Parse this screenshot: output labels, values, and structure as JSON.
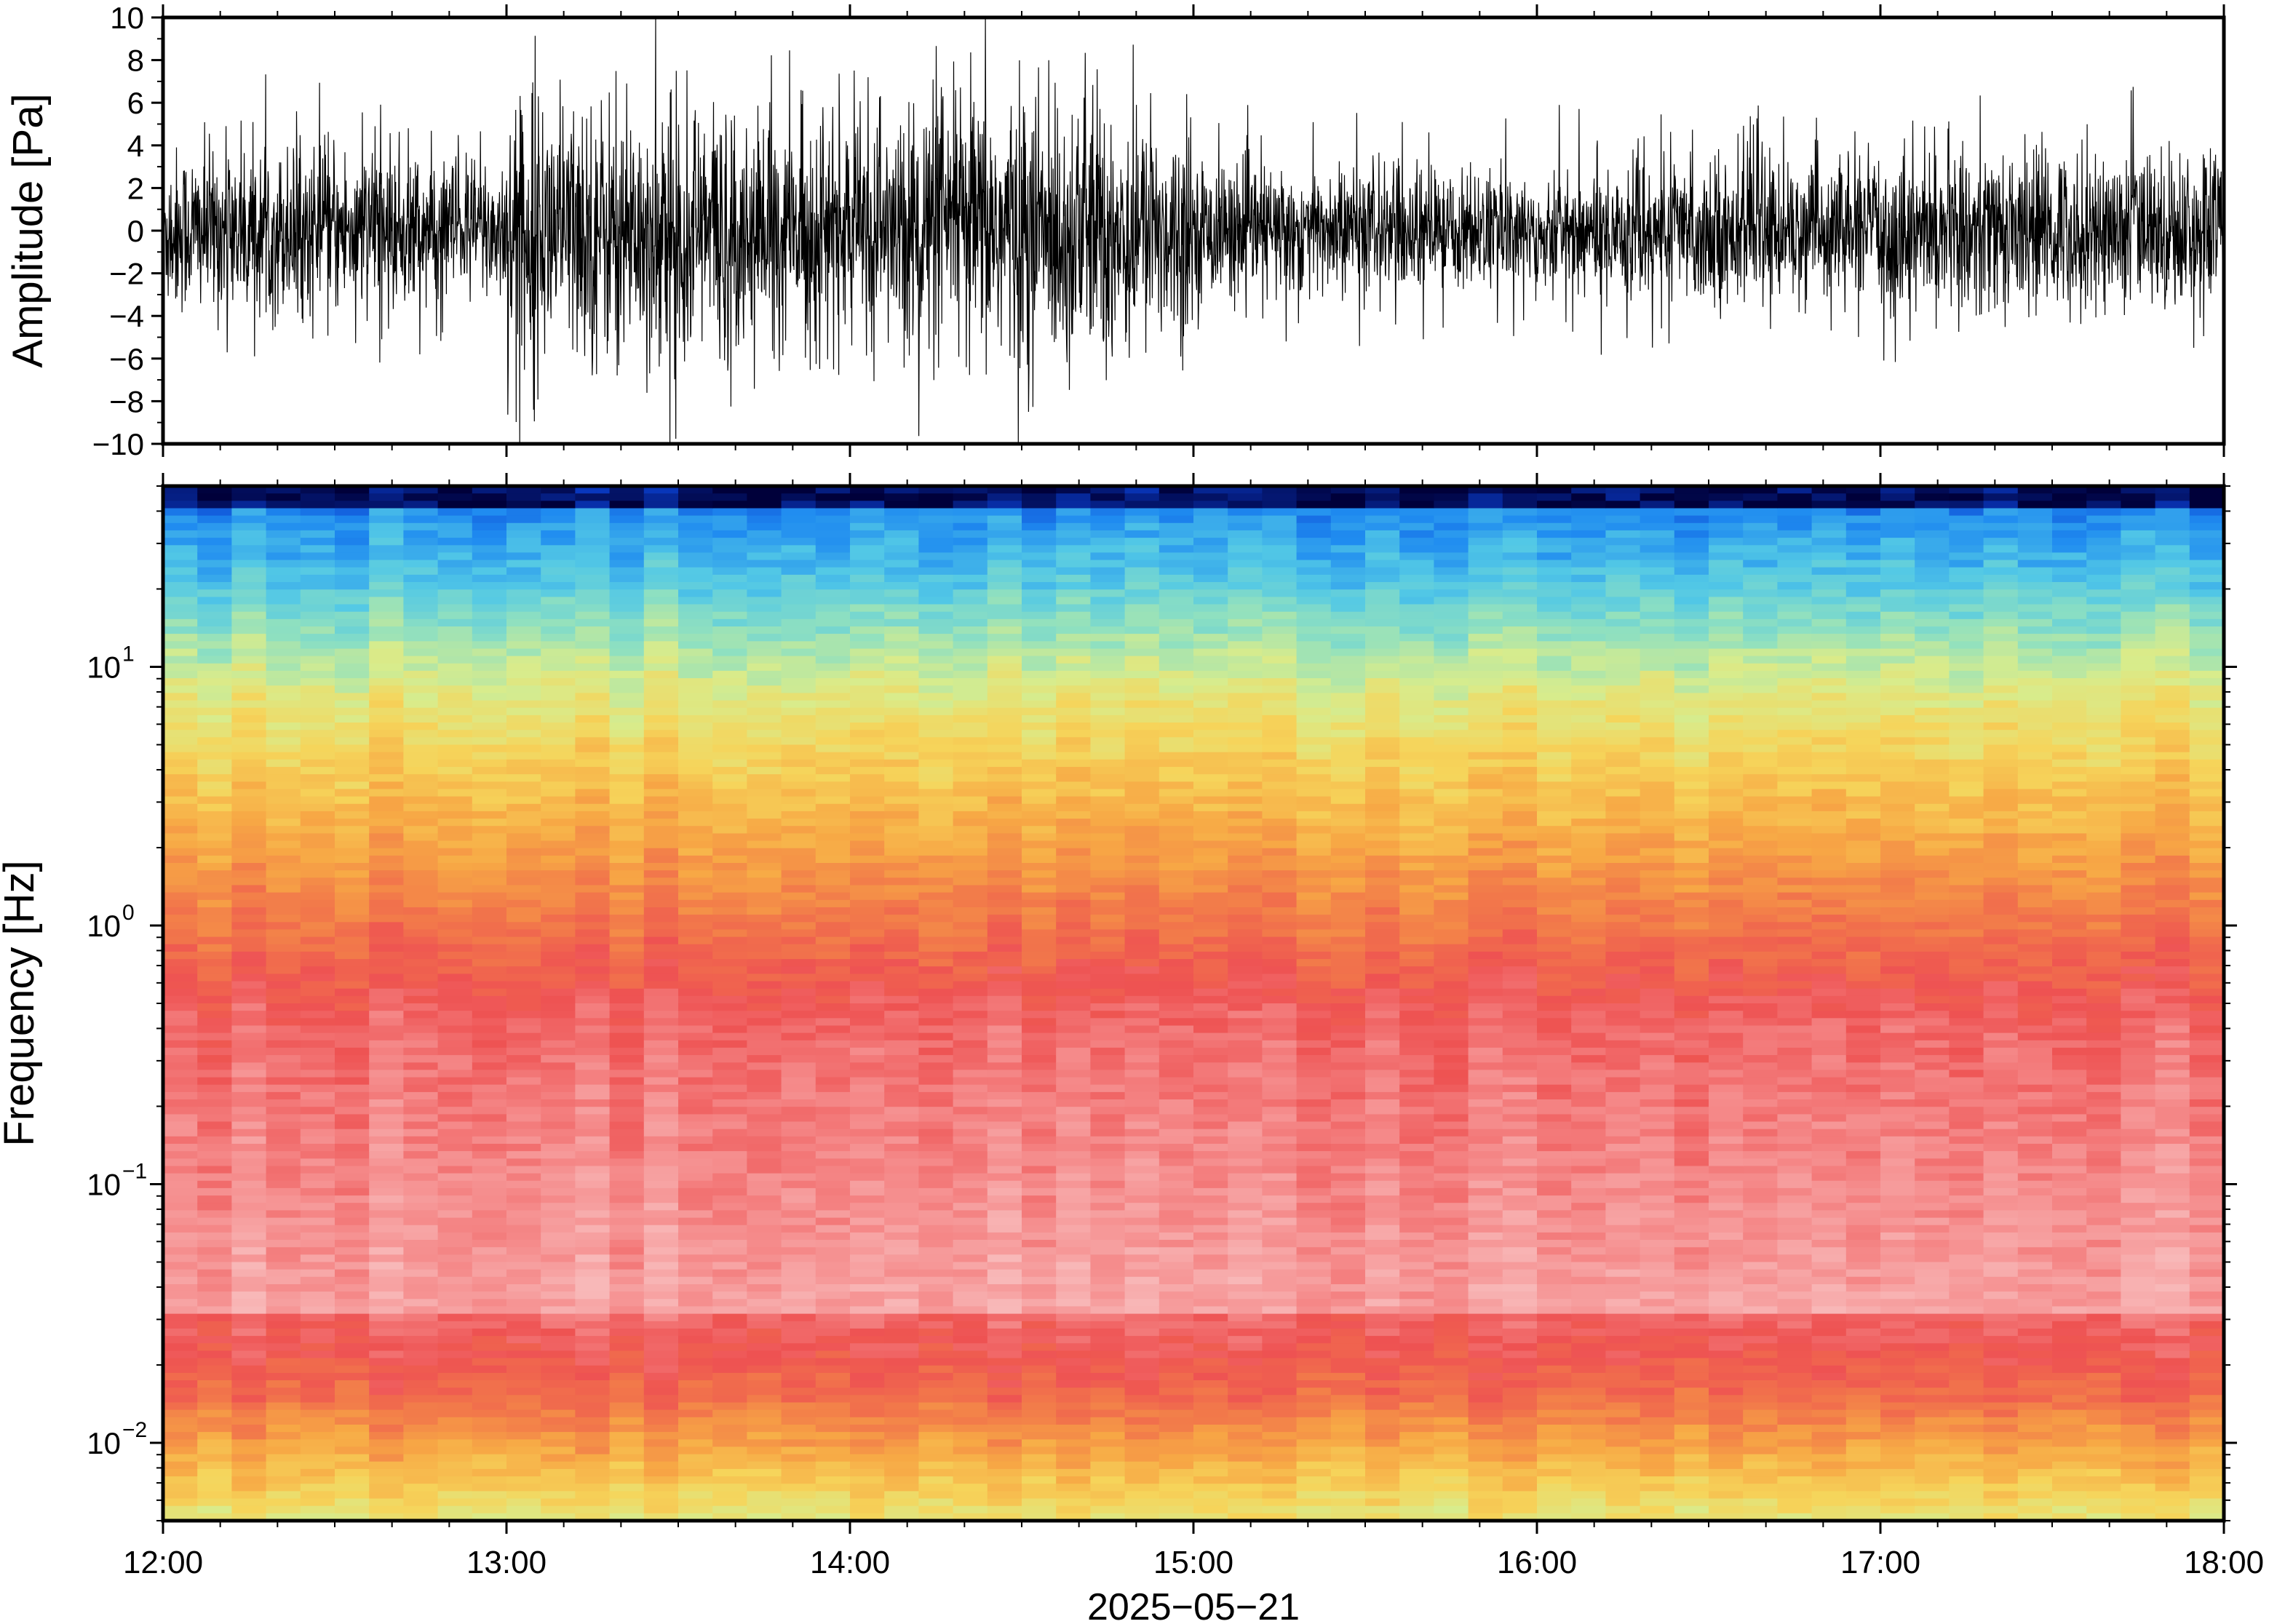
{
  "chart_data": [
    {
      "type": "line",
      "description_role": "waveform",
      "ylabel": "Amplitude [Pa]",
      "ylim": [
        -10,
        10
      ],
      "y_ticks": [
        "10",
        "8",
        "6",
        "4",
        "2",
        "0",
        "−2",
        "−4",
        "−6",
        "−8",
        "−10"
      ],
      "y_tick_values": [
        10,
        8,
        6,
        4,
        2,
        0,
        -2,
        -4,
        -6,
        -8,
        -10
      ],
      "xlim": [
        "12:00",
        "18:00"
      ],
      "envelope_segments": [
        {
          "from": "12:00",
          "to": "12:45",
          "amp": 3.5,
          "peak": 7
        },
        {
          "from": "12:45",
          "to": "13:00",
          "amp": 3.2,
          "peak": 6
        },
        {
          "from": "13:00",
          "to": "13:40",
          "amp": 5.5,
          "peak": 10
        },
        {
          "from": "13:40",
          "to": "14:10",
          "amp": 4.6,
          "peak": 8
        },
        {
          "from": "14:10",
          "to": "14:50",
          "amp": 5.8,
          "peak": 10
        },
        {
          "from": "14:50",
          "to": "15:00",
          "amp": 4.5,
          "peak": 7
        },
        {
          "from": "15:00",
          "to": "15:40",
          "amp": 2.8,
          "peak": 6
        },
        {
          "from": "15:40",
          "to": "16:10",
          "amp": 2.5,
          "peak": 6
        },
        {
          "from": "16:10",
          "to": "17:00",
          "amp": 3.0,
          "peak": 6
        },
        {
          "from": "17:00",
          "to": "18:00",
          "amp": 3.4,
          "peak": 7
        }
      ],
      "color": "#000000"
    },
    {
      "type": "heatmap",
      "description_role": "spectrogram",
      "ylabel": "Frequency [Hz]",
      "yscale": "log",
      "ylim": [
        0.005,
        50
      ],
      "y_ticks": [
        {
          "base": "10",
          "exp": "1"
        },
        {
          "base": "10",
          "exp": "0"
        },
        {
          "base": "10",
          "exp": "−1"
        },
        {
          "base": "10",
          "exp": "−2"
        }
      ],
      "y_tick_values": [
        10,
        1,
        0.1,
        0.01
      ],
      "xlim": [
        "12:00",
        "18:00"
      ],
      "colormap_low_to_high": [
        "#00003a",
        "#0a3fd0",
        "#1f8bf0",
        "#52c8e6",
        "#8fe0c0",
        "#d8ec8c",
        "#f6d45a",
        "#f7a845",
        "#f27a4a",
        "#ee5252",
        "#f58a8a",
        "#f8b8b8"
      ],
      "power_profile_note": "",
      "columns": 60
    }
  ],
  "xaxis": {
    "tick_labels": [
      "12:00",
      "13:00",
      "14:00",
      "15:00",
      "16:00",
      "17:00",
      "18:00"
    ],
    "date_label": "2025−05−21"
  }
}
